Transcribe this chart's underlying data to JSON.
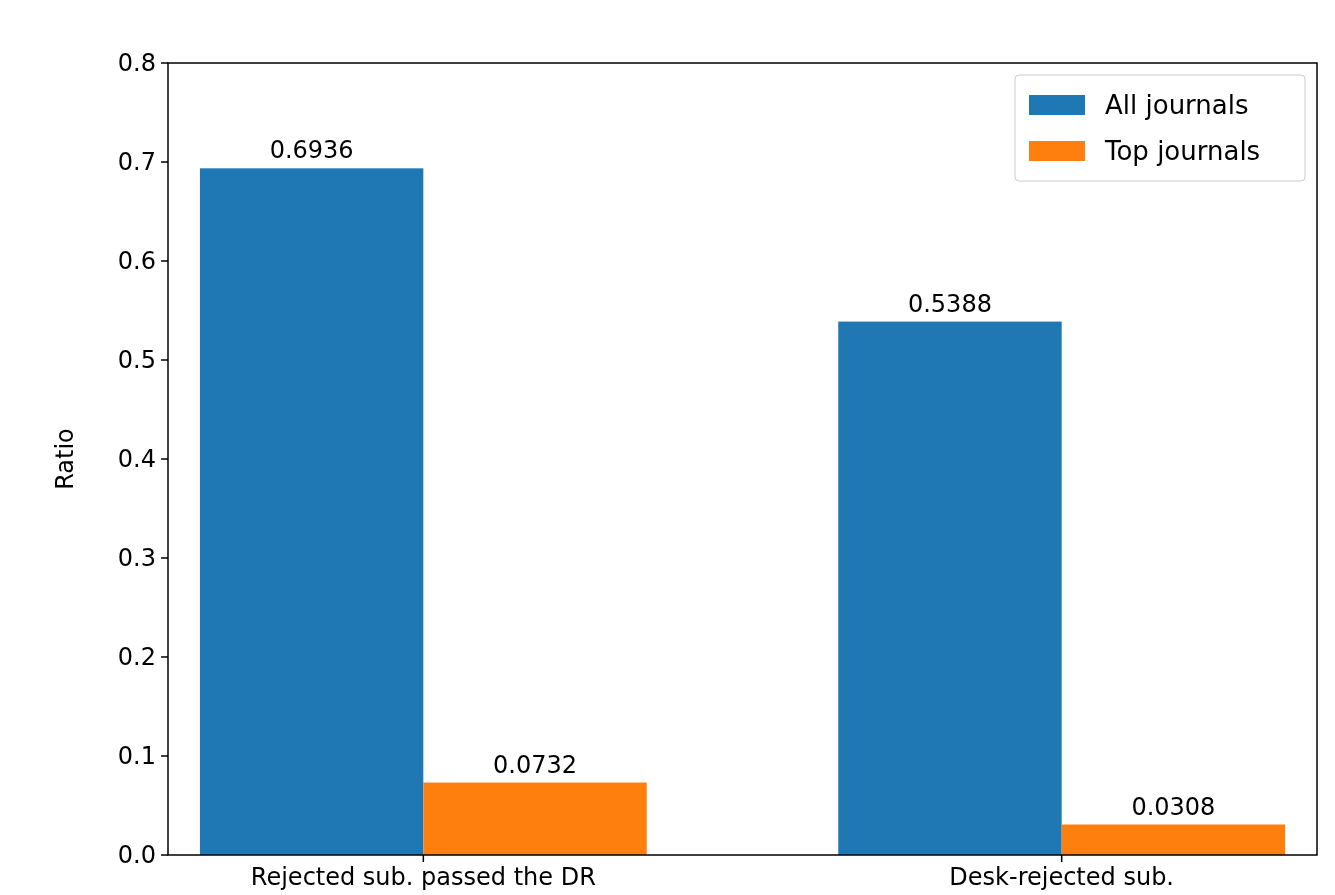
{
  "chart_data": {
    "type": "bar",
    "ylabel": "Ratio",
    "categories": [
      "Rejected sub. passed the DR",
      "Desk-rejected sub."
    ],
    "series": [
      {
        "name": "All journals",
        "color": "#1f77b4",
        "values": [
          0.6936,
          0.5388
        ]
      },
      {
        "name": "Top journals",
        "color": "#ff7f0e",
        "values": [
          0.0732,
          0.0308
        ]
      }
    ],
    "ylim": [
      0,
      0.8
    ],
    "yticks": [
      {
        "value": 0,
        "label": "0.0"
      },
      0.1,
      0.2,
      0.3,
      0.4,
      0.5,
      0.6,
      0.7,
      0.8
    ],
    "data_labels": true,
    "legend": "top right",
    "grid": false
  }
}
